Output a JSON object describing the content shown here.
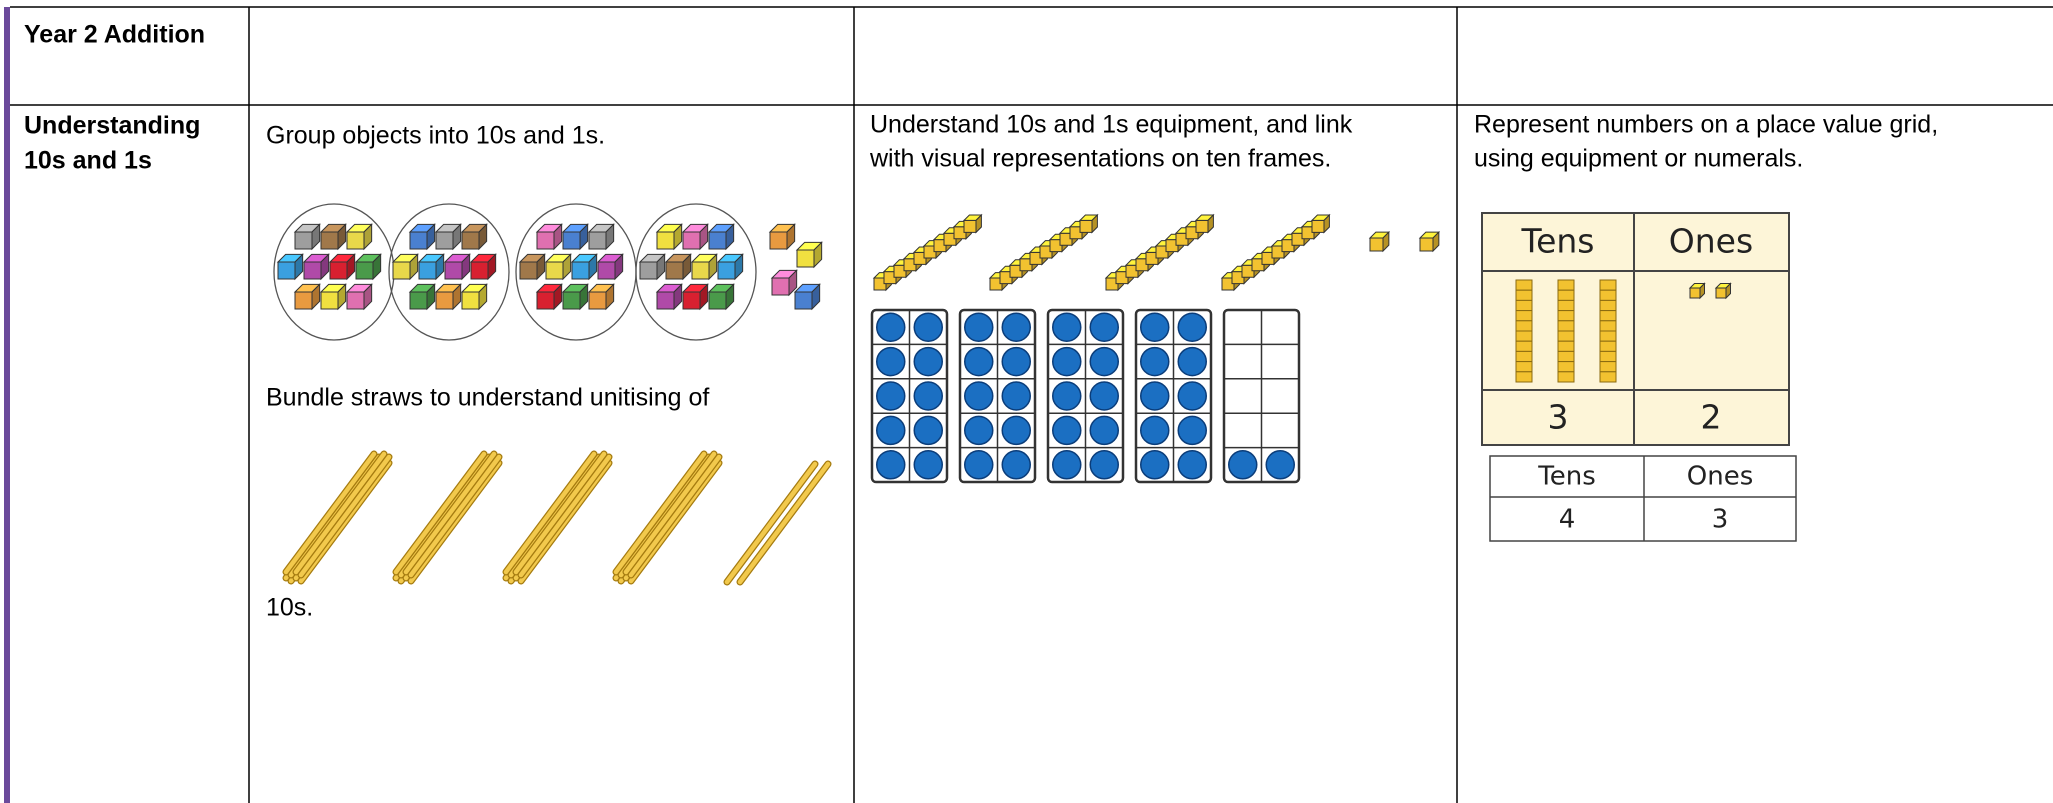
{
  "table": {
    "header": {
      "title": "Year 2 Addition"
    },
    "rows": [
      {
        "label_lines": [
          "Understanding",
          "10s and 1s"
        ],
        "cells": [
          {
            "texts": [
              "Group objects into 10s and 1s.",
              "Bundle straws to understand unitising of",
              "10s."
            ]
          },
          {
            "lines": [
              "Understand 10s and 1s equipment, and link",
              "with visual representations on ten frames."
            ]
          },
          {
            "lines": [
              "Represent numbers on a place value grid,",
              "using equipment or numerals."
            ],
            "grid_a": {
              "headers": [
                "Tens",
                "Ones"
              ],
              "values": [
                "3",
                "2"
              ]
            },
            "grid_b": {
              "headers": [
                "Tens",
                "Ones"
              ],
              "values": [
                "4",
                "3"
              ]
            }
          }
        ]
      }
    ]
  }
}
